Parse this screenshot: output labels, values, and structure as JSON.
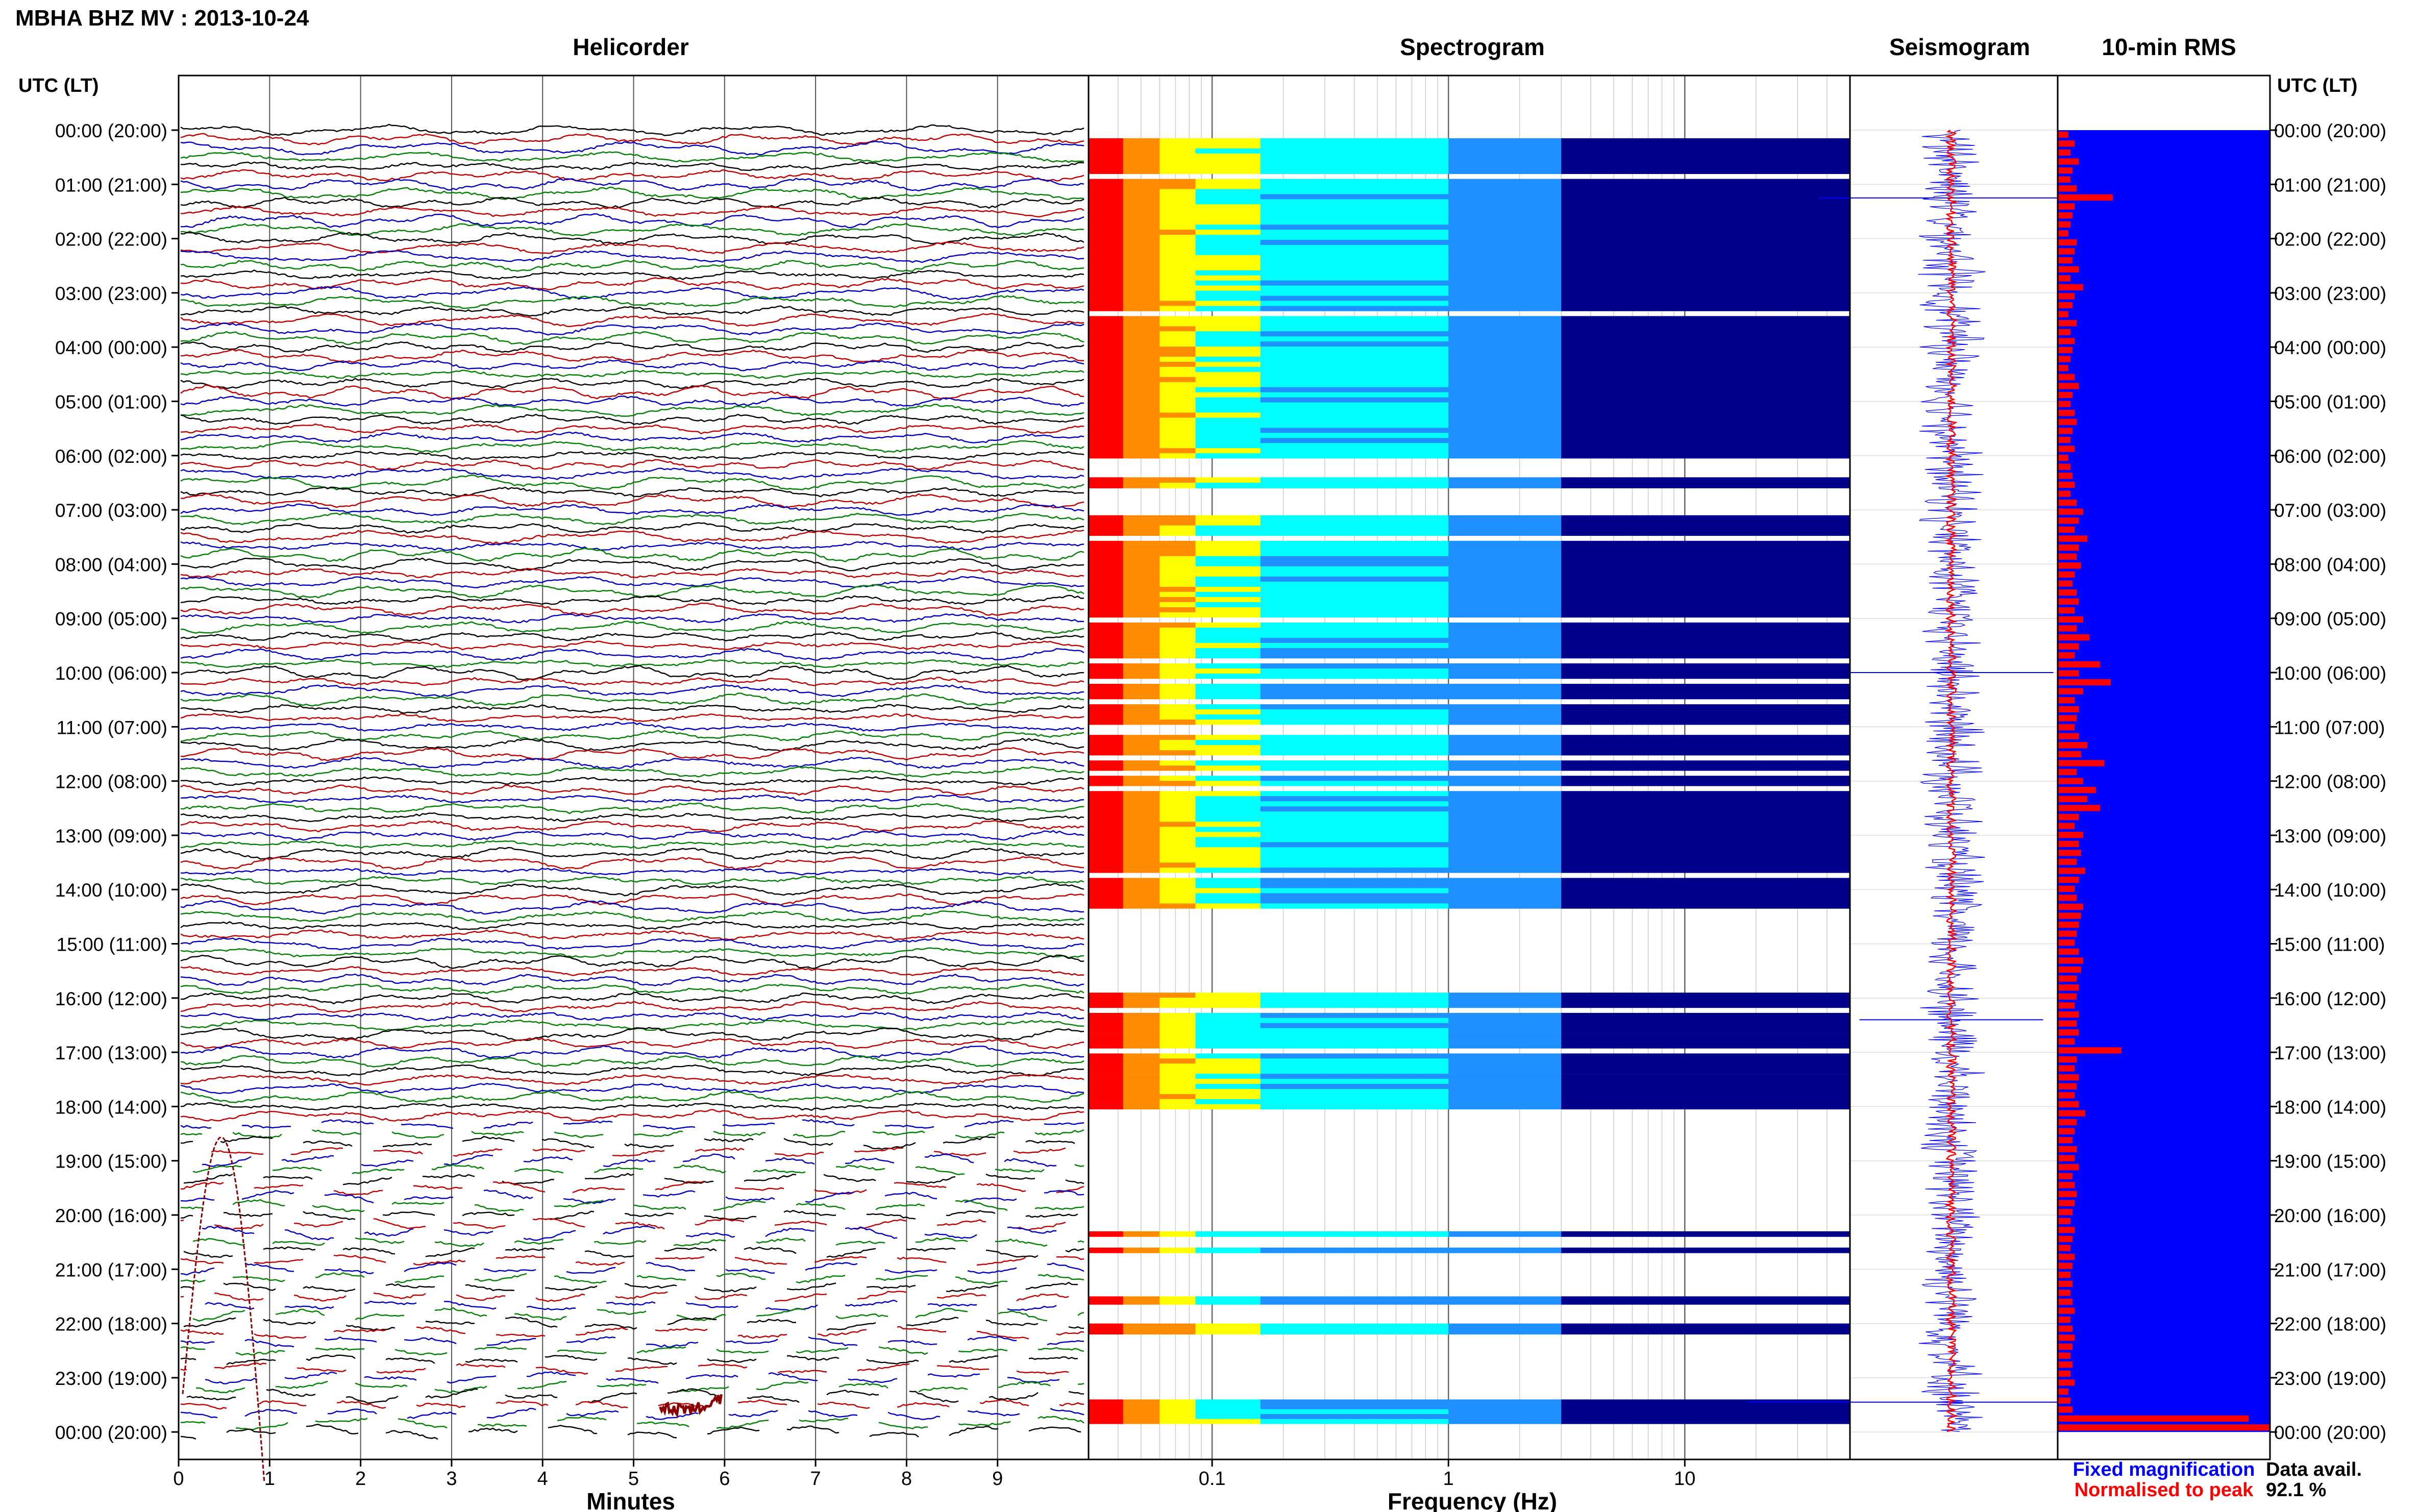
{
  "title": "MBHA BHZ MV : 2013-10-24",
  "chart_data": [
    {
      "type": "line",
      "title": "Helicorder",
      "xlabel": "Minutes",
      "xlim": [
        0,
        10
      ],
      "x_ticks": [
        "0",
        "1",
        "2",
        "3",
        "4",
        "5",
        "6",
        "7",
        "8",
        "9"
      ],
      "rows_per_hour": 6,
      "colors": [
        "#000000",
        "#c00000",
        "#0000c0",
        "#008000"
      ],
      "gap_hours": [
        [
          18.3,
          24
        ]
      ],
      "event_hour": 0.0,
      "event_minute": 5.6,
      "event_color": "#8b0000"
    },
    {
      "type": "heatmap",
      "title": "Spectrogram",
      "xlabel": "Frequency (Hz)",
      "xscale": "log",
      "xlim": [
        0.03,
        50
      ],
      "x_ticks": [
        "0.1",
        "1",
        "10"
      ],
      "colormap": [
        "#ff0000",
        "#ff8c00",
        "#ffff00",
        "#00ffff",
        "#1e90ff",
        "#00008b"
      ],
      "data_blocks_hours": [
        [
          0.15,
          6.05
        ],
        [
          6.4,
          6.6
        ],
        [
          7.1,
          14.35
        ],
        [
          15.9,
          18.05
        ],
        [
          20.3,
          20.4
        ],
        [
          20.6,
          20.7
        ],
        [
          21.5,
          21.65
        ],
        [
          22.0,
          22.2
        ],
        [
          23.4,
          23.85
        ]
      ]
    },
    {
      "type": "line",
      "title": "Seismogram",
      "legend": [
        "Fixed magnification",
        "Normalised to peak"
      ],
      "colors": [
        "#0000ff",
        "#ff0000"
      ]
    },
    {
      "type": "bar",
      "title": "10-min RMS",
      "orientation": "horizontal",
      "bar_color": "#ff0000",
      "background": "#0000ff",
      "rms_values": [
        0.05,
        0.08,
        0.06,
        0.1,
        0.07,
        0.06,
        0.09,
        0.26,
        0.08,
        0.07,
        0.06,
        0.05,
        0.09,
        0.08,
        0.07,
        0.1,
        0.06,
        0.12,
        0.08,
        0.07,
        0.05,
        0.09,
        0.06,
        0.08,
        0.07,
        0.06,
        0.05,
        0.08,
        0.1,
        0.07,
        0.06,
        0.08,
        0.09,
        0.07,
        0.06,
        0.08,
        0.05,
        0.06,
        0.07,
        0.08,
        0.06,
        0.09,
        0.12,
        0.1,
        0.08,
        0.14,
        0.1,
        0.09,
        0.11,
        0.08,
        0.07,
        0.09,
        0.1,
        0.08,
        0.12,
        0.09,
        0.15,
        0.1,
        0.08,
        0.2,
        0.1,
        0.25,
        0.12,
        0.08,
        0.1,
        0.09,
        0.08,
        0.1,
        0.14,
        0.11,
        0.22,
        0.09,
        0.12,
        0.18,
        0.14,
        0.2,
        0.1,
        0.08,
        0.12,
        0.1,
        0.11,
        0.09,
        0.13,
        0.1,
        0.08,
        0.09,
        0.12,
        0.11,
        0.1,
        0.09,
        0.08,
        0.1,
        0.12,
        0.11,
        0.09,
        0.1,
        0.09,
        0.08,
        0.1,
        0.09,
        0.1,
        0.08,
        0.3,
        0.09,
        0.08,
        0.1,
        0.09,
        0.08,
        0.1,
        0.13,
        0.09,
        0.08,
        0.07,
        0.09,
        0.08,
        0.1,
        0.07,
        0.08,
        0.09,
        0.08,
        0.07,
        0.06,
        0.08,
        0.07,
        0.06,
        0.08,
        0.07,
        0.06,
        0.07,
        0.06,
        0.07,
        0.08,
        0.06,
        0.07,
        0.08,
        0.07,
        0.06,
        0.07,
        0.06,
        0.08,
        0.05,
        0.06,
        0.07,
        0.9,
        1.0
      ]
    }
  ],
  "hour_labels": [
    "00:00 (20:00)",
    "01:00 (21:00)",
    "02:00 (22:00)",
    "03:00 (23:00)",
    "04:00 (00:00)",
    "05:00 (01:00)",
    "06:00 (02:00)",
    "07:00 (03:00)",
    "08:00 (04:00)",
    "09:00 (05:00)",
    "10:00 (06:00)",
    "11:00 (07:00)",
    "12:00 (08:00)",
    "13:00 (09:00)",
    "14:00 (10:00)",
    "15:00 (11:00)",
    "16:00 (12:00)",
    "17:00 (13:00)",
    "18:00 (14:00)",
    "19:00 (15:00)",
    "20:00 (16:00)",
    "21:00 (17:00)",
    "22:00 (18:00)",
    "23:00 (19:00)",
    "00:00 (20:00)"
  ],
  "utc_label": "UTC (LT)",
  "footer": {
    "legend_fixed": "Fixed magnification",
    "legend_norm": "Normalised to peak",
    "data_avail_label": "Data avail.",
    "data_avail_value": "92.1 %"
  }
}
